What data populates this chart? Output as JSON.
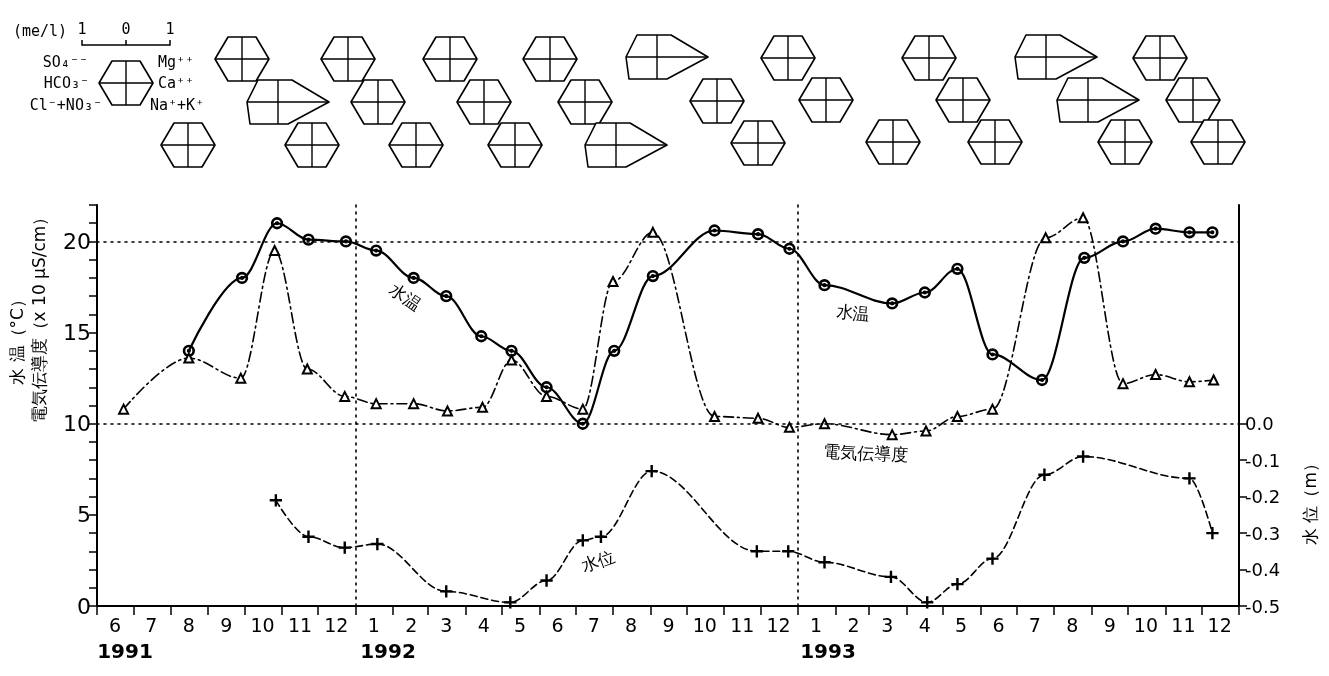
{
  "chart_data": {
    "type": "line",
    "ylabel": "水 温（°C）",
    "y2label": "水 位（m）",
    "xlim": [
      "1991-06-01",
      "1994-01-01"
    ],
    "xticks": [
      {
        "value": "1991-06-01",
        "label": null
      },
      {
        "value": "1991-07-01",
        "label": null
      },
      {
        "value": "1991-08-01",
        "label": null
      },
      {
        "value": "1991-09-01",
        "label": null
      },
      {
        "value": "1991-10-01",
        "label": null
      },
      {
        "value": "1991-11-01",
        "label": null
      },
      {
        "value": "1991-12-01",
        "label": null
      },
      {
        "value": "1992-01-01",
        "label": null
      },
      {
        "value": "1992-02-01",
        "label": null
      },
      {
        "value": "1992-03-01",
        "label": null
      },
      {
        "value": "1992-04-01",
        "label": null
      },
      {
        "value": "1992-05-01",
        "label": null
      },
      {
        "value": "1992-06-01",
        "label": null
      },
      {
        "value": "1992-07-01",
        "label": null
      },
      {
        "value": "1992-08-01",
        "label": null
      },
      {
        "value": "1992-09-01",
        "label": null
      },
      {
        "value": "1992-10-01",
        "label": null
      },
      {
        "value": "1992-11-01",
        "label": null
      },
      {
        "value": "1992-12-01",
        "label": null
      },
      {
        "value": "1993-01-01",
        "label": null
      },
      {
        "value": "1993-02-01",
        "label": null
      },
      {
        "value": "1993-03-01",
        "label": null
      },
      {
        "value": "1993-04-01",
        "label": null
      },
      {
        "value": "1993-05-01",
        "label": null
      },
      {
        "value": "1993-06-01",
        "label": null
      },
      {
        "value": "1993-07-01",
        "label": null
      },
      {
        "value": "1993-08-01",
        "label": null
      },
      {
        "value": "1993-09-01",
        "label": null
      },
      {
        "value": "1993-10-01",
        "label": null
      },
      {
        "value": "1993-11-01",
        "label": null
      },
      {
        "value": "1993-12-01",
        "label": null
      },
      {
        "value": "1994-01-01",
        "label": null
      },
      {
        "value": "1991-06-16",
        "label": "6"
      },
      {
        "value": "1991-07-16",
        "label": "7"
      },
      {
        "value": "1991-08-16",
        "label": "8"
      },
      {
        "value": "1991-09-16",
        "label": "9"
      },
      {
        "value": "1991-10-16",
        "label": "10"
      },
      {
        "value": "1991-11-16",
        "label": "11"
      },
      {
        "value": "1991-12-16",
        "label": "12"
      },
      {
        "value": "1992-01-16",
        "label": "1"
      },
      {
        "value": "1992-02-16",
        "label": "2"
      },
      {
        "value": "1992-03-16",
        "label": "3"
      },
      {
        "value": "1992-04-16",
        "label": "4"
      },
      {
        "value": "1992-05-16",
        "label": "5"
      },
      {
        "value": "1992-06-16",
        "label": "6"
      },
      {
        "value": "1992-07-16",
        "label": "7"
      },
      {
        "value": "1992-08-16",
        "label": "8"
      },
      {
        "value": "1992-09-16",
        "label": "9"
      },
      {
        "value": "1992-10-16",
        "label": "10"
      },
      {
        "value": "1992-11-16",
        "label": "11"
      },
      {
        "value": "1992-12-16",
        "label": "12"
      },
      {
        "value": "1993-01-16",
        "label": "1"
      },
      {
        "value": "1993-02-16",
        "label": "2"
      },
      {
        "value": "1993-03-16",
        "label": "3"
      },
      {
        "value": "1993-04-16",
        "label": "4"
      },
      {
        "value": "1993-05-16",
        "label": "5"
      },
      {
        "value": "1993-06-16",
        "label": "6"
      },
      {
        "value": "1993-07-16",
        "label": "7"
      },
      {
        "value": "1993-08-16",
        "label": "8"
      },
      {
        "value": "1993-09-16",
        "label": "9"
      },
      {
        "value": "1993-10-16",
        "label": "10"
      },
      {
        "value": "1993-11-16",
        "label": "11"
      },
      {
        "value": "1993-12-16",
        "label": "12"
      }
    ],
    "ylim": [
      0,
      22
    ],
    "yticks": [
      0,
      {
        "value": 1,
        "label": null
      },
      {
        "value": 2,
        "label": null
      },
      {
        "value": 3,
        "label": null
      },
      {
        "value": 4,
        "label": null
      },
      5,
      {
        "value": 6,
        "label": null
      },
      {
        "value": 7,
        "label": null
      },
      {
        "value": 8,
        "label": null
      },
      {
        "value": 9,
        "label": null
      },
      10,
      {
        "value": 11,
        "label": null
      },
      {
        "value": 12,
        "label": null
      },
      {
        "value": 13,
        "label": null
      },
      {
        "value": 14,
        "label": null
      },
      15,
      {
        "value": 16,
        "label": null
      },
      {
        "value": 17,
        "label": null
      },
      {
        "value": 18,
        "label": null
      },
      {
        "value": 19,
        "label": null
      },
      20,
      {
        "value": 21,
        "label": null
      },
      {
        "value": 22,
        "label": null
      }
    ],
    "y2lim": [
      -0.5,
      0.6
    ],
    "y2ticks": [
      {
        "value": 0,
        "label": "0.0"
      },
      -0.1,
      -0.2,
      -0.3,
      -0.4,
      -0.5
    ],
    "series": [
      {
        "color": "#000000",
        "marker": "circle",
        "line_style": "solid",
        "x": [
          "1991-08-16",
          "1991-09-29",
          "1991-10-28",
          "1991-11-23",
          "1991-12-24",
          "1992-01-18",
          "1992-02-18",
          "1992-03-16",
          "1992-04-14",
          "1992-05-09",
          "1992-06-07",
          "1992-07-07",
          "1992-08-02",
          "1992-09-03",
          "1992-10-24",
          "1992-11-29",
          "1992-12-25",
          "1993-01-23",
          "1993-03-20",
          "1993-04-16",
          "1993-05-13",
          "1993-06-11",
          "1993-07-22",
          "1993-08-26",
          "1993-09-27",
          "1993-10-24",
          "1993-11-21",
          "1993-12-10"
        ],
        "values": [
          14.0,
          18.0,
          21.0,
          20.1,
          20.0,
          19.5,
          18.0,
          17.0,
          14.8,
          14.0,
          12.0,
          10.0,
          14.0,
          18.1,
          20.6,
          20.4,
          19.6,
          17.6,
          16.6,
          17.2,
          18.5,
          13.8,
          12.4,
          19.1,
          20.0,
          20.7,
          20.5,
          20.5
        ]
      },
      {
        "color": "#000000",
        "marker": "triangle",
        "line_style": "dashdot",
        "x": [
          "1991-06-23",
          "1991-08-16",
          "1991-09-28",
          "1991-10-26",
          "1991-11-22",
          "1991-12-23",
          "1992-01-18",
          "1992-02-18",
          "1992-03-17",
          "1992-04-15",
          "1992-05-09",
          "1992-06-07",
          "1992-07-07",
          "1992-08-01",
          "1992-09-03",
          "1992-10-24",
          "1992-11-29",
          "1992-12-25",
          "1993-01-23",
          "1993-03-20",
          "1993-04-17",
          "1993-05-13",
          "1993-06-11",
          "1993-07-25",
          "1993-08-25",
          "1993-09-27",
          "1993-10-24",
          "1993-11-21",
          "1993-12-11"
        ],
        "values": [
          10.8,
          13.6,
          12.5,
          19.5,
          13.0,
          11.5,
          11.1,
          11.1,
          10.7,
          10.9,
          13.5,
          11.5,
          10.8,
          17.8,
          20.5,
          10.4,
          10.3,
          9.8,
          10.0,
          9.4,
          9.6,
          10.4,
          10.8,
          20.2,
          21.3,
          12.2,
          12.7,
          12.3,
          12.4
        ]
      },
      {
        "color": "#000000",
        "marker": "cross",
        "line_style": "dashed",
        "axis": "y2",
        "x": [
          "1991-10-27",
          "1991-11-23",
          "1991-12-23",
          "1992-01-19",
          "1992-03-16",
          "1992-05-08",
          "1992-06-07",
          "1992-07-07",
          "1992-07-22",
          "1992-09-02",
          "1992-11-28",
          "1992-12-24",
          "1993-01-23",
          "1993-03-19",
          "1993-04-18",
          "1993-05-13",
          "1993-06-11",
          "1993-07-24",
          "1993-08-25",
          "1993-11-21",
          "1993-12-10"
        ],
        "values": [
          -0.21,
          -0.31,
          -0.34,
          -0.33,
          -0.46,
          -0.49,
          -0.43,
          -0.32,
          -0.31,
          -0.13,
          -0.35,
          -0.35,
          -0.38,
          -0.42,
          -0.49,
          -0.44,
          -0.37,
          -0.14,
          -0.09,
          -0.15,
          -0.3
        ]
      }
    ],
    "ref_lines": [
      {
        "axis": "y",
        "value": 20,
        "line_style": "dotted",
        "color": "#000000"
      },
      {
        "axis": "y",
        "value": 10,
        "line_style": "dotted",
        "color": "#000000"
      },
      {
        "axis": "x",
        "value": "1992-01-01",
        "line_style": "dotted",
        "color": "#000000"
      },
      {
        "axis": "x",
        "value": "1993-01-01",
        "line_style": "dotted",
        "color": "#000000"
      }
    ],
    "annotations": [
      "(me/l)",
      "1",
      "0",
      "1",
      "SO₄⁻⁻",
      "HCO₃⁻",
      "Cl⁻+NO₃⁻",
      "Mg⁺⁺",
      "Ca⁺⁺",
      "Na⁺+K⁺",
      "1991",
      "1992",
      "1993",
      "水温",
      "水温",
      "電気伝導度",
      "水位",
      "電気伝導度（x 10 μS/cm）"
    ]
  }
}
